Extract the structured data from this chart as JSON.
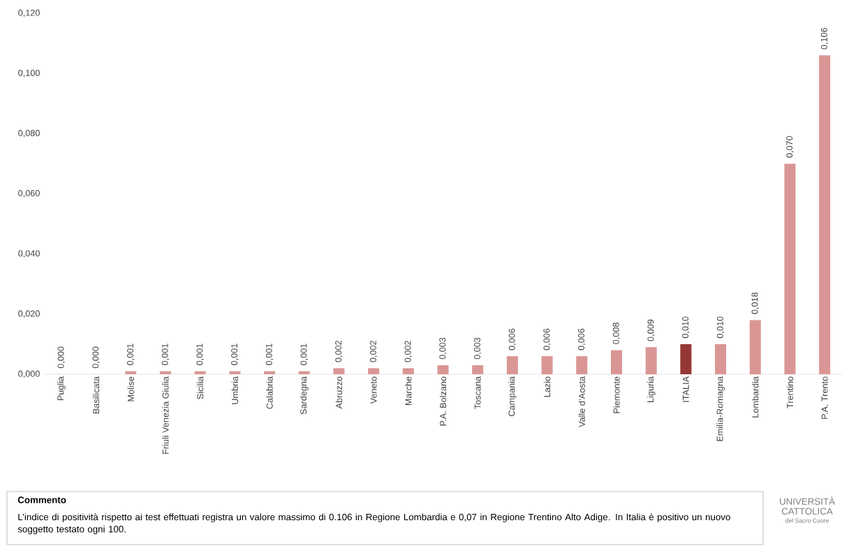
{
  "chart_data": {
    "type": "bar",
    "categories": [
      "Puglia",
      "Basilicata",
      "Molise",
      "Friuli Venezia Giulia",
      "Sicilia",
      "Umbria",
      "Calabria",
      "Sardegna",
      "Abruzzo",
      "Veneto",
      "Marche",
      "P.A. Bolzano",
      "Toscana",
      "Campania",
      "Lazio",
      "Valle d’Aosta",
      "Piemonte",
      "Liguria",
      "ITALIA",
      "Emilia-Romagna",
      "Lombardia",
      "Trentino",
      "P.A. Trento"
    ],
    "values": [
      0.0,
      0.0,
      0.001,
      0.001,
      0.001,
      0.001,
      0.001,
      0.001,
      0.002,
      0.002,
      0.002,
      0.003,
      0.003,
      0.006,
      0.006,
      0.006,
      0.008,
      0.009,
      0.01,
      0.01,
      0.018,
      0.07,
      0.106
    ],
    "colors": [
      "#d99694",
      "#d99694",
      "#d99694",
      "#d99694",
      "#d99694",
      "#d99694",
      "#d99694",
      "#d99694",
      "#d99694",
      "#d99694",
      "#d99694",
      "#d99694",
      "#d99694",
      "#d99694",
      "#d99694",
      "#d99694",
      "#d99694",
      "#d99694",
      "#953735",
      "#d99694",
      "#d99694",
      "#d99694",
      "#d99694"
    ],
    "value_labels": [
      "0,000",
      "0,000",
      "0,001",
      "0,001",
      "0,001",
      "0,001",
      "0,001",
      "0,001",
      "0,002",
      "0,002",
      "0,002",
      "0,003",
      "0,003",
      "0,006",
      "0,006",
      "0,006",
      "0,008",
      "0,009",
      "0,010",
      "0,010",
      "0,018",
      "0,070",
      "0,106"
    ],
    "ylim": [
      0,
      0.12
    ],
    "yticks": [
      {
        "value": 0,
        "label": "0,000"
      },
      {
        "value": 0.02,
        "label": "0,020"
      },
      {
        "value": 0.04,
        "label": "0,040"
      },
      {
        "value": 0.06,
        "label": "0,060"
      },
      {
        "value": 0.08,
        "label": "0,080"
      },
      {
        "value": 0.1,
        "label": "0,100"
      },
      {
        "value": 0.12,
        "label": "0,120"
      }
    ],
    "annotations": [
      "Commento",
      "L’indice di positività rispetto ai test effettuati registra un valore massimo di 0.106 in Regione Lombardia e 0,07 in Regione Trentino Alto Adige. In Italia è positivo un nuovo soggetto testato ogni 100.",
      "UNIVERSITÀ CATTOLICA",
      "del Sacro Cuore"
    ]
  }
}
